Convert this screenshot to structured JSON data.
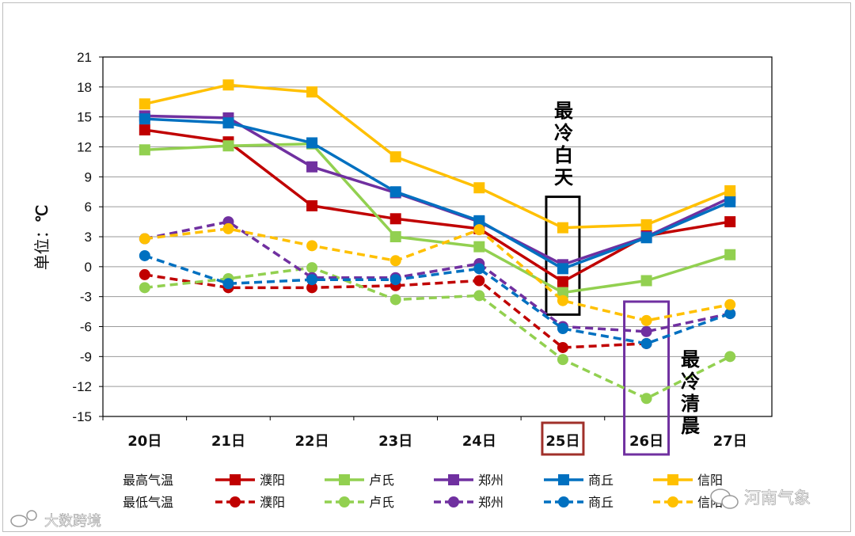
{
  "chart_data": {
    "type": "line",
    "title": "",
    "ylabel_prefix": "单位：",
    "ylabel_unit": "℃",
    "xlabel": "",
    "ylim": [
      -15,
      21
    ],
    "yticks": [
      21,
      18,
      15,
      12,
      9,
      6,
      3,
      0,
      -3,
      -6,
      -9,
      -12,
      -15
    ],
    "categories": [
      "20日",
      "21日",
      "22日",
      "23日",
      "24日",
      "25日",
      "26日",
      "27日"
    ],
    "grid": true,
    "legend_row_labels": [
      "最高气温",
      "最低气温"
    ],
    "series": [
      {
        "name": "濮阳",
        "kind": "max",
        "color": "#c00000",
        "marker": "square",
        "dashed": false,
        "values": [
          13.7,
          12.5,
          6.1,
          4.8,
          3.8,
          -1.5,
          3.1,
          4.5
        ]
      },
      {
        "name": "卢氏",
        "kind": "max",
        "color": "#92d050",
        "marker": "square",
        "dashed": false,
        "values": [
          11.7,
          12.1,
          12.3,
          3.0,
          2.0,
          -2.6,
          -1.4,
          1.2
        ]
      },
      {
        "name": "郑州",
        "kind": "max",
        "color": "#7030a0",
        "marker": "square",
        "dashed": false,
        "values": [
          15.1,
          14.9,
          10.0,
          7.4,
          4.5,
          0.2,
          3.0,
          6.9
        ]
      },
      {
        "name": "商丘",
        "kind": "max",
        "color": "#0070c0",
        "marker": "square",
        "dashed": false,
        "values": [
          14.8,
          14.4,
          12.4,
          7.5,
          4.6,
          -0.2,
          2.9,
          6.5
        ]
      },
      {
        "name": "信阳",
        "kind": "max",
        "color": "#ffc000",
        "marker": "square",
        "dashed": false,
        "values": [
          16.3,
          18.2,
          17.5,
          11.0,
          7.9,
          3.9,
          4.2,
          7.6
        ]
      },
      {
        "name": "濮阳",
        "kind": "min",
        "color": "#c00000",
        "marker": "circle",
        "dashed": true,
        "values": [
          -0.8,
          -2.1,
          -2.1,
          -1.9,
          -1.4,
          -8.1,
          -7.7,
          null
        ]
      },
      {
        "name": "卢氏",
        "kind": "min",
        "color": "#92d050",
        "marker": "circle",
        "dashed": true,
        "values": [
          -2.1,
          -1.2,
          -0.1,
          -3.3,
          -2.9,
          -9.3,
          -13.2,
          -9.0
        ]
      },
      {
        "name": "郑州",
        "kind": "min",
        "color": "#7030a0",
        "marker": "circle",
        "dashed": true,
        "values": [
          2.8,
          4.5,
          -1.1,
          -1.1,
          0.3,
          -6.0,
          -6.5,
          -4.7
        ]
      },
      {
        "name": "商丘",
        "kind": "min",
        "color": "#0070c0",
        "marker": "circle",
        "dashed": true,
        "values": [
          1.1,
          -1.7,
          -1.3,
          -1.3,
          -0.2,
          -6.2,
          -7.7,
          -4.7
        ]
      },
      {
        "name": "信阳",
        "kind": "min",
        "color": "#ffc000",
        "marker": "circle",
        "dashed": true,
        "values": [
          2.8,
          3.8,
          2.1,
          0.6,
          3.7,
          -3.4,
          -5.4,
          -3.8
        ]
      }
    ],
    "annotations": {
      "coldest_day": "最冷白天",
      "coldest_morning": "最冷清晨",
      "highlight_day_category": "25日",
      "highlight_morning_category": "26日",
      "highlight_day_color": "#a0302a",
      "highlight_morning_color": "#7030a0"
    }
  },
  "watermarks": {
    "left": "大数跨境",
    "right": "河南气象"
  }
}
